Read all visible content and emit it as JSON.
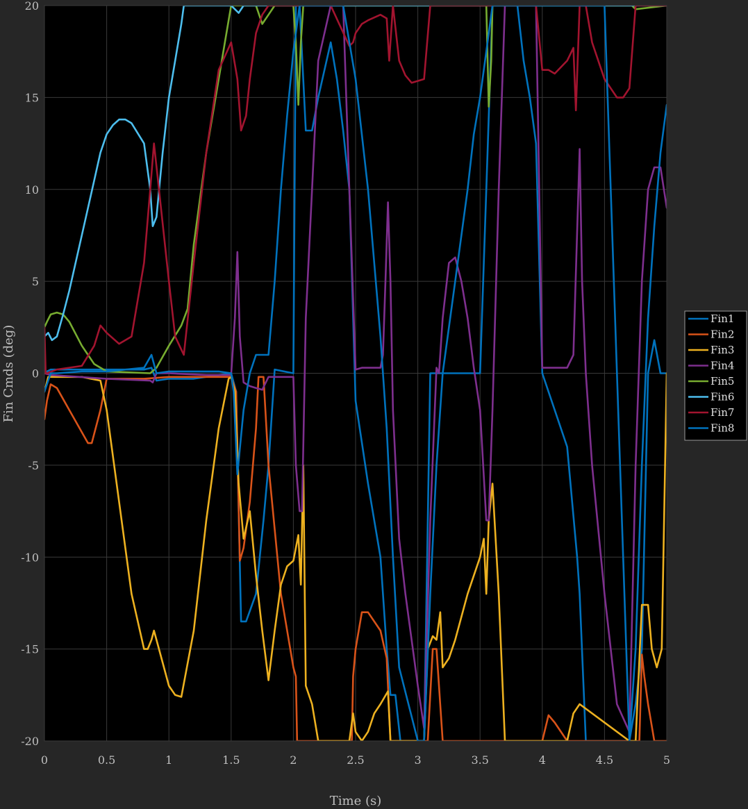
{
  "chart_data": {
    "type": "line",
    "title": "",
    "xlabel": "Time (s)",
    "ylabel": "Fin Cmds (deg)",
    "xlim": [
      0,
      5
    ],
    "ylim": [
      -20,
      20
    ],
    "xticks": [
      0,
      0.5,
      1,
      1.5,
      2,
      2.5,
      3,
      3.5,
      4,
      4.5,
      5
    ],
    "xtick_labels": [
      "0",
      "0.5",
      "1",
      "1.5",
      "2",
      "2.5",
      "3",
      "3.5",
      "4",
      "4.5",
      "5"
    ],
    "yticks": [
      -20,
      -15,
      -10,
      -5,
      0,
      5,
      10,
      15,
      20
    ],
    "ytick_labels": [
      "-20",
      "-15",
      "-10",
      "-5",
      "0",
      "5",
      "10",
      "15",
      "20"
    ],
    "grid": true,
    "legend_position": "outside-right",
    "series": [
      {
        "name": "Fin1",
        "color": "#0072BD",
        "x": [
          0,
          0.02,
          0.05,
          0.1,
          0.3,
          0.5,
          0.8,
          0.86,
          0.9,
          1.0,
          1.2,
          1.4,
          1.5,
          1.54,
          1.58,
          1.62,
          1.7,
          1.76,
          1.8,
          1.85,
          2.0,
          2.02,
          2.05,
          2.1,
          2.15,
          2.2,
          2.3,
          2.35,
          2.4,
          2.45,
          2.5,
          2.6,
          2.7,
          2.75,
          2.78,
          2.82,
          2.86,
          2.9,
          3.0,
          3.05,
          3.1,
          3.2,
          3.3,
          3.45,
          3.5,
          3.55,
          3.6,
          3.65,
          3.7,
          3.75,
          3.8,
          3.85,
          3.9,
          3.95,
          4.0,
          4.2,
          4.28,
          4.3,
          4.35,
          4.5,
          4.7,
          4.75,
          4.8,
          4.85,
          4.9,
          4.95,
          5.0
        ],
        "y": [
          0,
          0.1,
          0.2,
          0.2,
          0.2,
          0.2,
          0.2,
          0.3,
          -0.4,
          -0.3,
          -0.3,
          -0.1,
          0,
          -1,
          -13.5,
          -13.5,
          -12,
          -8,
          -5,
          0.2,
          0,
          20,
          20,
          13.2,
          13.2,
          15,
          18,
          16,
          13.2,
          10,
          -1.5,
          -6,
          -10,
          -15,
          -17.5,
          -17.5,
          -20,
          -20,
          -20,
          -20,
          0,
          0,
          0,
          0,
          0,
          10,
          20,
          20,
          20,
          20,
          20,
          17,
          15,
          12.5,
          0,
          -4,
          -10,
          -12,
          -20,
          -20,
          -20,
          -18,
          -15,
          0,
          1.8,
          0,
          0
        ]
      },
      {
        "name": "Fin2",
        "color": "#D95319",
        "x": [
          0,
          0.01,
          0.02,
          0.05,
          0.1,
          0.2,
          0.35,
          0.38,
          0.45,
          0.5,
          0.8,
          1.0,
          1.5,
          1.54,
          1.57,
          1.6,
          1.65,
          1.7,
          1.72,
          1.76,
          1.8,
          1.9,
          2.0,
          2.02,
          2.03,
          2.1,
          2.47,
          2.48,
          2.5,
          2.55,
          2.6,
          2.7,
          2.75,
          2.78,
          3.08,
          3.12,
          3.15,
          3.2,
          3.5,
          4.0,
          4.05,
          4.1,
          4.2,
          4.3,
          4.5,
          4.7,
          4.78,
          4.8,
          4.82,
          4.85,
          4.9,
          5.0
        ],
        "y": [
          -2.5,
          -2,
          -1.5,
          -0.6,
          -0.8,
          -2,
          -3.8,
          -3.8,
          -2,
          -0.3,
          -0.3,
          -0.2,
          -0.2,
          -1,
          -10.2,
          -9.5,
          -7,
          -3,
          -0.2,
          -0.2,
          -5,
          -12,
          -16,
          -16.5,
          -20,
          -20,
          -20,
          -16.5,
          -15,
          -13,
          -13,
          -14,
          -15.5,
          -20,
          -20,
          -15,
          -15,
          -20,
          -20,
          -20,
          -18.6,
          -19,
          -20,
          -20,
          -20,
          -20,
          -20,
          -15.3,
          -16.5,
          -18,
          -20,
          -20
        ]
      },
      {
        "name": "Fin3",
        "color": "#EDB120",
        "x": [
          0,
          0.03,
          0.1,
          0.3,
          0.45,
          0.5,
          0.6,
          0.7,
          0.8,
          0.83,
          0.86,
          0.88,
          0.92,
          1.0,
          1.05,
          1.1,
          1.2,
          1.3,
          1.4,
          1.48,
          1.5,
          1.53,
          1.56,
          1.6,
          1.65,
          1.7,
          1.75,
          1.8,
          1.85,
          1.9,
          1.95,
          2.0,
          2.02,
          2.04,
          2.06,
          2.08,
          2.1,
          2.15,
          2.2,
          2.45,
          2.48,
          2.5,
          2.55,
          2.6,
          2.65,
          2.7,
          2.76,
          2.78,
          2.85,
          3.05,
          3.08,
          3.12,
          3.15,
          3.18,
          3.2,
          3.25,
          3.3,
          3.4,
          3.5,
          3.53,
          3.55,
          3.57,
          3.6,
          3.65,
          3.7,
          3.75,
          3.8,
          3.95,
          4.0,
          4.2,
          4.25,
          4.3,
          4.7,
          4.75,
          4.8,
          4.85,
          4.88,
          4.92,
          4.96,
          5.0
        ],
        "y": [
          -1,
          -0.2,
          -0.2,
          -0.2,
          -0.4,
          -2,
          -7,
          -12,
          -15,
          -15,
          -14.5,
          -14,
          -15,
          -17,
          -17.5,
          -17.6,
          -14,
          -8,
          -3,
          -0.3,
          -0.2,
          -1,
          -6,
          -9,
          -7.5,
          -11,
          -14,
          -16.7,
          -14,
          -11.5,
          -10.5,
          -10.2,
          -9.5,
          -8.8,
          -11.5,
          -5,
          -17,
          -18,
          -20,
          -20,
          -18.5,
          -19.5,
          -20,
          -19.5,
          -18.5,
          -18,
          -17.3,
          -20,
          -20,
          -20,
          -15,
          -14.3,
          -14.5,
          -13,
          -16,
          -15.5,
          -14.5,
          -12,
          -10,
          -9,
          -12,
          -8,
          -6,
          -12,
          -20,
          -20,
          -20,
          -20,
          -20,
          -20,
          -18.5,
          -18,
          -20,
          -20,
          -12.6,
          -12.6,
          -15,
          -16,
          -15,
          0
        ]
      },
      {
        "name": "Fin4",
        "color": "#7E2F8E",
        "x": [
          0,
          0.05,
          0.5,
          0.85,
          0.87,
          0.9,
          1.0,
          1.3,
          1.5,
          1.53,
          1.55,
          1.57,
          1.6,
          1.65,
          1.7,
          1.75,
          1.8,
          1.9,
          2.0,
          2.02,
          2.05,
          2.07,
          2.1,
          2.15,
          2.2,
          2.3,
          2.35,
          2.4,
          2.45,
          2.5,
          2.55,
          2.6,
          2.65,
          2.7,
          2.72,
          2.74,
          2.76,
          2.78,
          2.8,
          2.85,
          2.9,
          3.0,
          3.05,
          3.1,
          3.15,
          3.17,
          3.2,
          3.25,
          3.3,
          3.35,
          3.4,
          3.45,
          3.5,
          3.55,
          3.57,
          3.6,
          3.65,
          3.7,
          3.75,
          3.8,
          3.85,
          3.9,
          3.95,
          4.0,
          4.1,
          4.2,
          4.25,
          4.3,
          4.32,
          4.35,
          4.4,
          4.5,
          4.6,
          4.7,
          4.75,
          4.8,
          4.85,
          4.9,
          4.95,
          5.0
        ],
        "y": [
          0,
          -0.1,
          -0.3,
          -0.4,
          -0.5,
          0,
          0,
          -0.1,
          -0.1,
          3,
          6.6,
          2,
          -0.5,
          -0.7,
          -0.8,
          -0.9,
          -0.2,
          -0.2,
          -0.2,
          -5,
          -7.5,
          -7.5,
          3,
          10,
          17,
          20,
          20,
          20,
          10,
          0.2,
          0.3,
          0.3,
          0.3,
          0.3,
          1,
          5,
          9.3,
          5,
          -2,
          -9,
          -12,
          -17,
          -19.3,
          -8,
          0.3,
          0,
          3,
          6,
          6.3,
          5,
          3,
          0.3,
          -2,
          -8,
          -8,
          -2,
          10,
          20,
          20,
          20,
          20,
          20,
          20,
          0.3,
          0.3,
          0.3,
          1,
          12.2,
          5,
          0,
          -5,
          -12,
          -18,
          -19.5,
          -5,
          5,
          10,
          11.2,
          11.2,
          9
        ]
      },
      {
        "name": "Fin5",
        "color": "#77AC30",
        "x": [
          0,
          0.02,
          0.05,
          0.1,
          0.15,
          0.2,
          0.3,
          0.4,
          0.5,
          0.85,
          0.9,
          1.0,
          1.1,
          1.15,
          1.2,
          1.3,
          1.4,
          1.45,
          1.5,
          1.6,
          1.7,
          1.75,
          1.8,
          1.85,
          1.9,
          1.95,
          2.0,
          2.02,
          2.04,
          2.06,
          2.08,
          2.1,
          2.4,
          3.55,
          3.57,
          3.59,
          3.6,
          3.65,
          4.72,
          4.75,
          5.0
        ],
        "y": [
          2.5,
          2.8,
          3.2,
          3.3,
          3.2,
          2.8,
          1.5,
          0.5,
          0.1,
          0,
          0.3,
          1.5,
          2.6,
          3.5,
          7,
          12,
          16,
          18,
          20,
          20,
          20,
          19,
          19.5,
          20,
          20,
          20,
          20,
          18,
          14.6,
          18,
          20,
          20,
          20,
          20,
          14.5,
          17,
          20,
          20,
          20,
          19.8,
          20
        ]
      },
      {
        "name": "Fin6",
        "color": "#4DBEEE",
        "x": [
          0,
          0.03,
          0.06,
          0.1,
          0.15,
          0.2,
          0.3,
          0.4,
          0.45,
          0.5,
          0.55,
          0.6,
          0.65,
          0.7,
          0.8,
          0.85,
          0.87,
          0.9,
          0.95,
          1.0,
          1.05,
          1.1,
          1.12,
          1.15,
          1.5,
          1.56,
          1.6,
          5.0
        ],
        "y": [
          2,
          2.2,
          1.8,
          2,
          3.2,
          4.5,
          7.5,
          10.5,
          12,
          13,
          13.5,
          13.8,
          13.8,
          13.6,
          12.5,
          10,
          8,
          8.5,
          12,
          15,
          17,
          19,
          20,
          20,
          20,
          19.6,
          20,
          20
        ]
      },
      {
        "name": "Fin7",
        "color": "#A2142F",
        "x": [
          0,
          0.01,
          0.02,
          0.1,
          0.3,
          0.4,
          0.45,
          0.5,
          0.6,
          0.7,
          0.8,
          0.85,
          0.88,
          0.92,
          1.0,
          1.05,
          1.12,
          1.2,
          1.3,
          1.4,
          1.5,
          1.55,
          1.58,
          1.62,
          1.65,
          1.7,
          1.75,
          1.8,
          1.9,
          2.3,
          2.45,
          2.48,
          2.5,
          2.55,
          2.6,
          2.7,
          2.75,
          2.77,
          2.8,
          2.85,
          2.9,
          2.95,
          3.05,
          3.1,
          3.2,
          3.5,
          3.6,
          3.7,
          3.8,
          3.95,
          4.0,
          4.05,
          4.1,
          4.2,
          4.25,
          4.27,
          4.3,
          4.35,
          4.4,
          4.5,
          4.6,
          4.65,
          4.7,
          4.75,
          4.8,
          5.0
        ],
        "y": [
          2.5,
          0,
          0,
          0.2,
          0.4,
          1.5,
          2.6,
          2.2,
          1.6,
          2,
          6,
          10,
          12.5,
          10,
          5,
          2,
          1,
          6,
          12,
          16.5,
          18,
          16,
          13.2,
          14,
          16,
          18.5,
          19.5,
          20,
          20,
          20,
          17.8,
          18,
          18.5,
          19,
          19.2,
          19.5,
          19.3,
          17,
          20,
          17,
          16.2,
          15.8,
          16,
          20,
          20,
          20,
          20,
          20,
          20,
          20,
          16.5,
          16.5,
          16.3,
          17,
          17.7,
          14.3,
          20,
          20,
          18,
          16,
          15,
          15,
          15.5,
          20,
          20,
          20
        ]
      },
      {
        "name": "Fin8",
        "color": "#0072BD",
        "x": [
          0,
          0.02,
          0.05,
          0.1,
          0.3,
          0.5,
          0.8,
          0.86,
          0.9,
          1.0,
          1.2,
          1.4,
          1.5,
          1.52,
          1.55,
          1.6,
          1.65,
          1.7,
          1.75,
          1.8,
          1.85,
          1.9,
          1.95,
          2.0,
          2.05,
          2.1,
          2.15,
          2.2,
          2.25,
          2.3,
          2.4,
          2.5,
          2.6,
          2.7,
          2.75,
          2.8,
          2.85,
          3.0,
          3.05,
          3.1,
          3.15,
          3.2,
          3.3,
          3.4,
          3.45,
          3.5,
          3.55,
          3.6,
          3.7,
          3.8,
          3.9,
          4.0,
          4.1,
          4.2,
          4.3,
          4.35,
          4.5,
          4.7,
          4.75,
          4.8,
          4.85,
          4.9,
          4.95,
          5.0
        ],
        "y": [
          -1,
          -0.6,
          0,
          0,
          0.1,
          0.1,
          0.3,
          1,
          0,
          0.1,
          0.1,
          0.1,
          0,
          -1,
          -5.5,
          -2,
          0,
          1,
          1,
          1,
          5,
          10,
          14,
          17.5,
          20,
          20,
          20,
          20,
          20,
          20,
          20,
          16,
          10,
          2,
          -3,
          -10,
          -16,
          -20,
          -20,
          -12,
          -5,
          0,
          5,
          10,
          13,
          15,
          17.5,
          20,
          20,
          20,
          20,
          20,
          20,
          20,
          20,
          20,
          20,
          -20,
          -15,
          -5,
          3,
          8,
          12,
          14.6
        ]
      }
    ]
  }
}
